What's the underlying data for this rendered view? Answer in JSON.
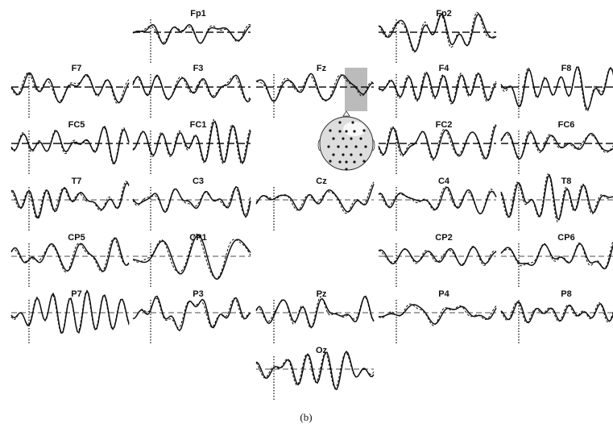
{
  "channels": [
    "Fp1",
    "Fp2",
    "F7",
    "F3",
    "Fz",
    "F4",
    "F8",
    "FC5",
    "FC1",
    "FC2",
    "FC6",
    "T7",
    "C3",
    "Cz",
    "C4",
    "T8",
    "CP5",
    "CP1",
    "CP2",
    "CP6",
    "P7",
    "P3",
    "Pz",
    "P4",
    "P8",
    "Oz"
  ],
  "caption": "(b)"
}
